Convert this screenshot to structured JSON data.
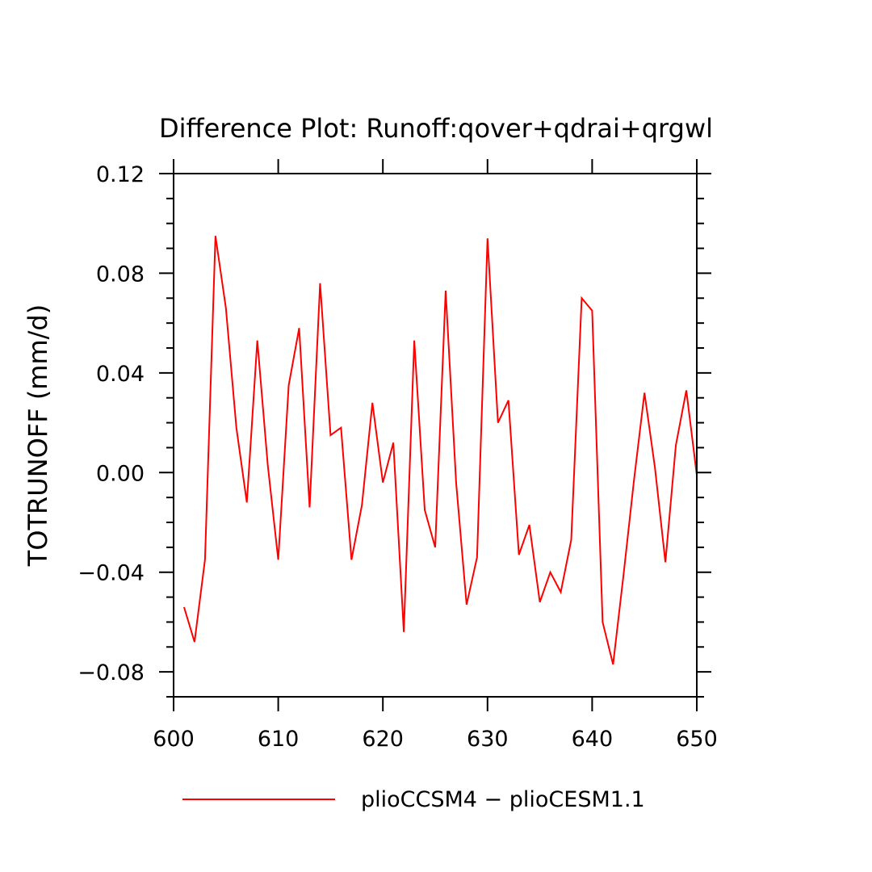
{
  "chart_data": {
    "type": "line",
    "title": "Difference Plot: Runoff:qover+qdrai+qrgwl",
    "xlabel": "",
    "ylabel": "TOTRUNOFF   (mm/d)",
    "xlim": [
      600,
      650
    ],
    "ylim": [
      -0.09,
      0.12
    ],
    "x_ticks": [
      600,
      610,
      620,
      630,
      640,
      650
    ],
    "x_tick_labels": [
      "600",
      "610",
      "620",
      "630",
      "640",
      "650"
    ],
    "y_ticks": [
      0.12,
      0.08,
      0.04,
      0.0,
      -0.04,
      -0.08
    ],
    "y_tick_labels": [
      "0.12",
      "0.08",
      "0.04",
      "0.00",
      "−0.04",
      "−0.08"
    ],
    "grid": false,
    "legend_position": "bottom",
    "series": [
      {
        "name": "plioCCSM4 − plioCESM1.1",
        "color": "#ff0000",
        "x": [
          601,
          602,
          603,
          604,
          605,
          606,
          607,
          608,
          609,
          610,
          611,
          612,
          613,
          614,
          615,
          616,
          617,
          618,
          619,
          620,
          621,
          622,
          623,
          624,
          625,
          626,
          627,
          628,
          629,
          630,
          631,
          632,
          633,
          634,
          635,
          636,
          637,
          638,
          639,
          640,
          641,
          642,
          643,
          644,
          645,
          646,
          647,
          648,
          649,
          650
        ],
        "values": [
          -0.054,
          -0.068,
          -0.035,
          0.095,
          0.066,
          0.018,
          -0.012,
          0.053,
          0.003,
          -0.035,
          0.035,
          0.058,
          -0.014,
          0.076,
          0.015,
          0.018,
          -0.035,
          -0.013,
          0.028,
          -0.004,
          0.012,
          -0.064,
          0.053,
          -0.015,
          -0.03,
          0.073,
          -0.004,
          -0.053,
          -0.034,
          0.094,
          0.02,
          0.029,
          -0.033,
          -0.021,
          -0.052,
          -0.04,
          -0.048,
          -0.027,
          0.07,
          0.065,
          -0.06,
          -0.077,
          -0.041,
          -0.003,
          0.032,
          0.002,
          -0.036,
          0.011,
          0.033,
          -0.001
        ]
      }
    ]
  }
}
